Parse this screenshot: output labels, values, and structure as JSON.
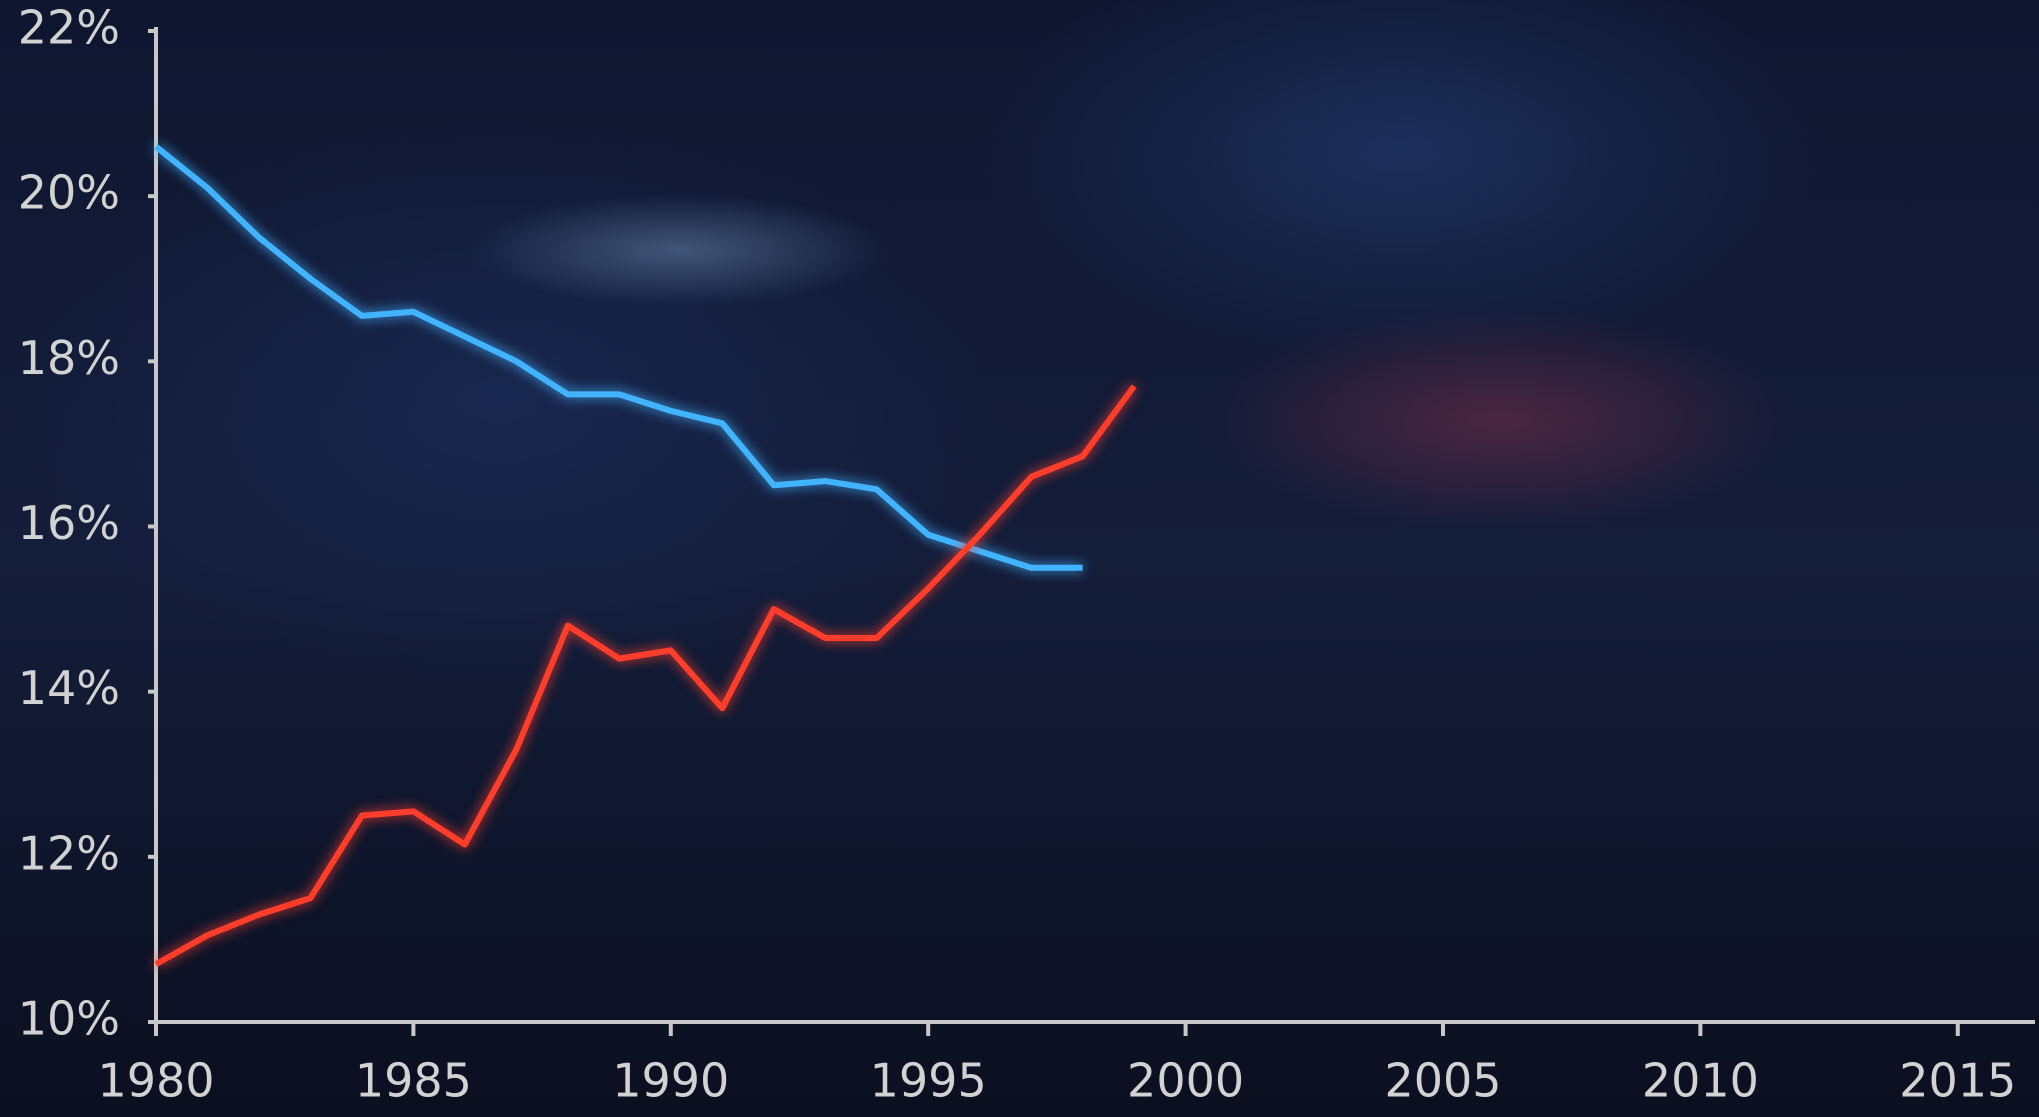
{
  "chart_data": {
    "type": "line",
    "x": [
      1980,
      1981,
      1982,
      1983,
      1984,
      1985,
      1986,
      1987,
      1988,
      1989,
      1990,
      1991,
      1992,
      1993,
      1994,
      1995,
      1996,
      1997,
      1998,
      1999
    ],
    "series": [
      {
        "color": "#42b4ff",
        "values": [
          20.6,
          20.1,
          19.5,
          19.0,
          18.55,
          18.6,
          18.3,
          18.0,
          17.6,
          17.6,
          17.4,
          17.25,
          16.5,
          16.55,
          16.45,
          15.9,
          15.7,
          15.5,
          15.5,
          null
        ]
      },
      {
        "color": "#ff3d2b",
        "values": [
          10.7,
          11.05,
          11.3,
          11.5,
          12.5,
          12.55,
          12.15,
          13.3,
          14.8,
          14.4,
          14.5,
          13.8,
          15.0,
          14.65,
          14.65,
          15.25,
          15.9,
          16.6,
          16.85,
          17.7
        ]
      }
    ],
    "xlim": [
      1980,
      2016.5
    ],
    "xticks": [
      1980,
      1985,
      1990,
      1995,
      2000,
      2005,
      2010,
      2015
    ],
    "ylim": [
      10,
      22
    ],
    "yticks": [
      {
        "value": 10,
        "label": "10%"
      },
      {
        "value": 12,
        "label": "12%"
      },
      {
        "value": 14,
        "label": "14%"
      },
      {
        "value": 16,
        "label": "16%"
      },
      {
        "value": 18,
        "label": "18%"
      },
      {
        "value": 20,
        "label": "20%"
      },
      {
        "value": 22,
        "label": "22%"
      }
    ]
  }
}
